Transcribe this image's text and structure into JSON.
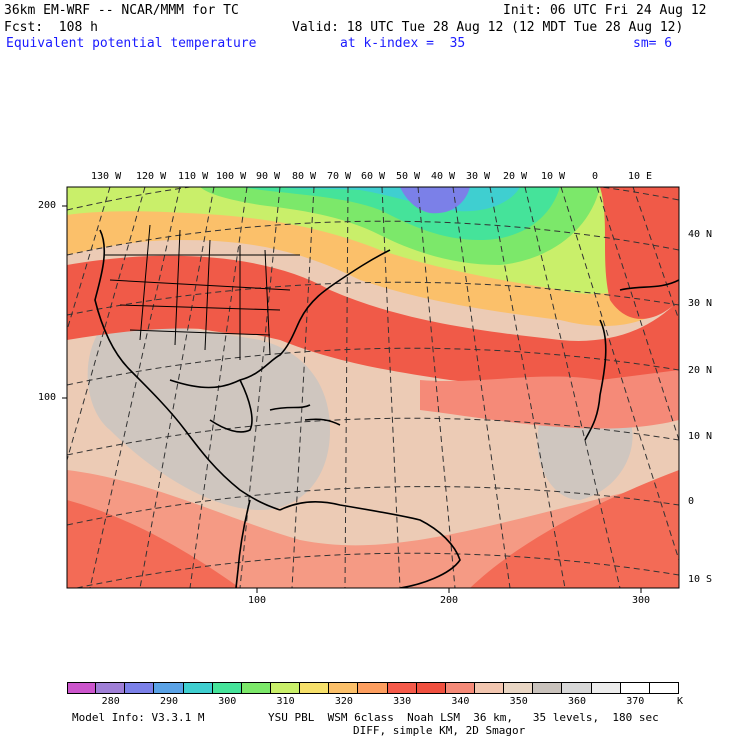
{
  "header": {
    "title_left": "36km EM-WRF -- NCAR/MMM for TC",
    "init": "Init: 06 UTC Fri 24 Aug 12",
    "fcst": "Fcst:  108 h",
    "valid": "Valid: 18 UTC Tue 28 Aug 12 (12 MDT Tue 28 Aug 12)",
    "field": "Equivalent potential temperature",
    "level": "at k-index =  35",
    "smooth": "sm= 6"
  },
  "map": {
    "top_lon_labels": [
      "130 W",
      "120 W",
      "110 W",
      "100 W",
      "90 W",
      "80 W",
      "70 W",
      "60 W",
      "50 W",
      "40 W",
      "30 W",
      "20 W",
      "10 W",
      "0",
      "10 E"
    ],
    "right_lat_labels": [
      "40 N",
      "30 N",
      "20 N",
      "10 N",
      "0",
      "10 S"
    ],
    "left_grid_labels": [
      "200",
      "100"
    ],
    "bottom_grid_labels": [
      "100",
      "200",
      "300"
    ]
  },
  "legend": {
    "colors": [
      "#cc55cc",
      "#9f7fd6",
      "#7b80e8",
      "#5aa2e6",
      "#3fcfd0",
      "#45e39a",
      "#7ce86a",
      "#c9ef6a",
      "#f6e06b",
      "#fbc06a",
      "#fd9e5f",
      "#f55a4a",
      "#f0503f",
      "#f58a78",
      "#f2c6b0",
      "#e9d6c4",
      "#c9c2bc",
      "#d8d8d8",
      "#ececec",
      "#ffffff",
      "#ffffff"
    ],
    "labels": [
      "280",
      "290",
      "300",
      "310",
      "320",
      "330",
      "340",
      "350",
      "360",
      "370",
      "K"
    ]
  },
  "footer": {
    "model_info": "Model Info: V3.3.1 M",
    "physics": "YSU PBL  WSM 6class  Noah LSM  36 km,   35 levels,  180 sec",
    "diff": "DIFF, simple KM, 2D Smagor"
  }
}
